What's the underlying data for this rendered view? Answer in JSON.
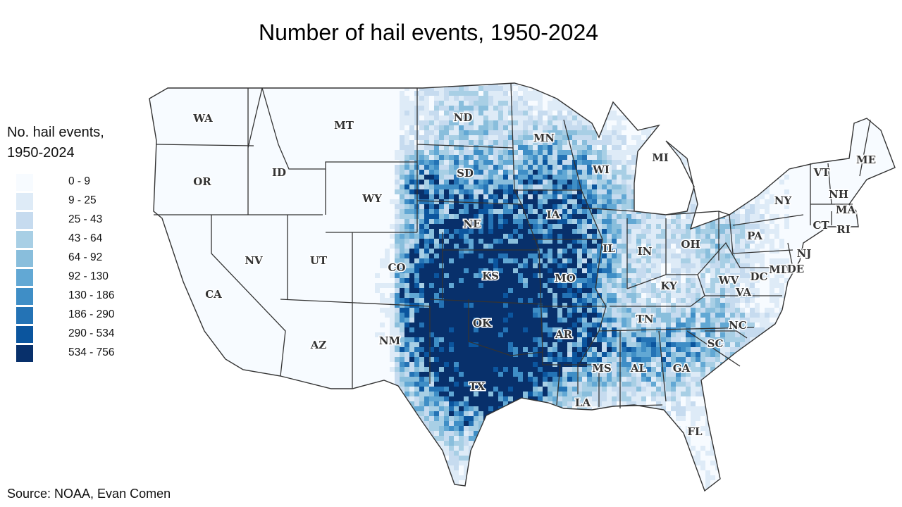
{
  "title": "Number of hail events, 1950-2024",
  "legend": {
    "title_line1": "No. hail events,",
    "title_line2": "1950-2024",
    "bins": [
      {
        "label": "0 - 9",
        "color": "#f7fbff"
      },
      {
        "label": "9 - 25",
        "color": "#deebf7"
      },
      {
        "label": "25 - 43",
        "color": "#c6dbef"
      },
      {
        "label": "43 - 64",
        "color": "#a8cfe5"
      },
      {
        "label": "64 - 92",
        "color": "#89bedc"
      },
      {
        "label": "92 - 130",
        "color": "#62a8d4"
      },
      {
        "label": "130 - 186",
        "color": "#3f8ec6"
      },
      {
        "label": "186 - 290",
        "color": "#2473b5"
      },
      {
        "label": "290 - 534",
        "color": "#0b559e"
      },
      {
        "label": "534 - 756",
        "color": "#08306b"
      }
    ]
  },
  "states": [
    "WA",
    "OR",
    "CA",
    "ID",
    "NV",
    "MT",
    "WY",
    "UT",
    "AZ",
    "CO",
    "NM",
    "ND",
    "SD",
    "NE",
    "KS",
    "OK",
    "TX",
    "MN",
    "IA",
    "MO",
    "AR",
    "LA",
    "WI",
    "IL",
    "MI",
    "IN",
    "OH",
    "KY",
    "TN",
    "MS",
    "AL",
    "GA",
    "FL",
    "SC",
    "NC",
    "VA",
    "WV",
    "PA",
    "NY",
    "VT",
    "NH",
    "ME",
    "MA",
    "CT",
    "RI",
    "NJ",
    "MD",
    "DC",
    "DE"
  ],
  "source": "Source: NOAA, Evan Comen"
}
